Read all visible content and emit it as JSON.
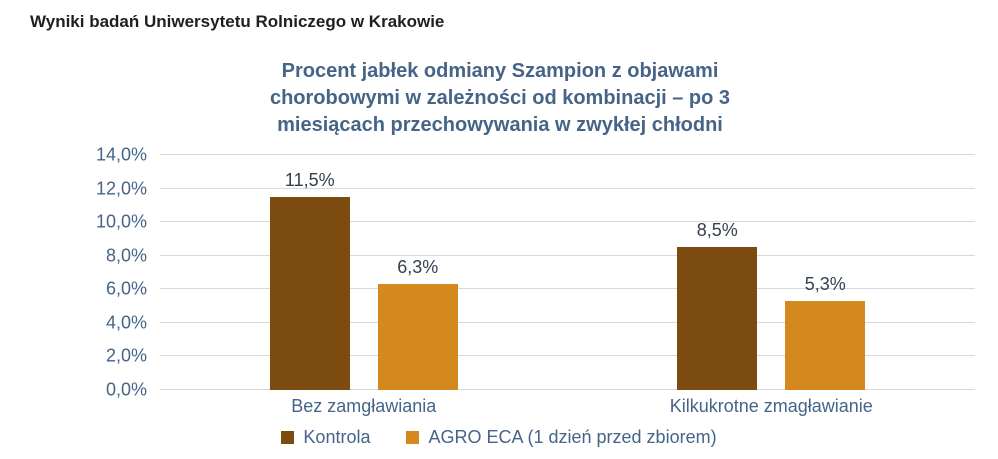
{
  "header": {
    "title": "Wyniki badań Uniwersytetu Rolniczego w Krakowie"
  },
  "chart_data": {
    "type": "bar",
    "title": "Procent jabłek odmiany Szampion z objawami chorobowymi w zależności od kombinacji – po 3 miesiącach przechowywania w zwykłej chłodni",
    "categories": [
      "Bez zamgławiania",
      "Kilkukrotne zmagławianie"
    ],
    "series": [
      {
        "name": "Kontrola",
        "color": "#7c4b10",
        "values": [
          11.5,
          8.5
        ],
        "labels": [
          "11,5%",
          "8,5%"
        ]
      },
      {
        "name": "AGRO ECA (1 dzień przed zbiorem)",
        "color": "#d4891e",
        "values": [
          6.3,
          5.3
        ],
        "labels": [
          "6,3%",
          "5,3%"
        ]
      }
    ],
    "ylim": [
      0,
      14
    ],
    "yticks": [
      "14,0%",
      "12,0%",
      "10,0%",
      "8,0%",
      "6,0%",
      "4,0%",
      "2,0%",
      "0,0%"
    ],
    "grid": true,
    "legend_position": "bottom",
    "colors": {
      "title_text": "#456488",
      "axis_text": "#456488",
      "data_label_text": "#333f50",
      "gridline": "#d9d9d9"
    }
  }
}
